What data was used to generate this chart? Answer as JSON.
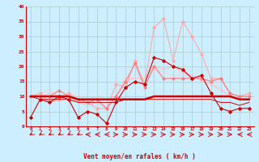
{
  "xlabel": "Vent moyen/en rafales ( km/h )",
  "background_color": "#cceeff",
  "grid_color": "#aacccc",
  "x": [
    0,
    1,
    2,
    3,
    4,
    5,
    6,
    7,
    8,
    9,
    10,
    11,
    12,
    13,
    14,
    15,
    16,
    17,
    18,
    19,
    20,
    21,
    22,
    23
  ],
  "series": [
    {
      "y": [
        3,
        9,
        8,
        10,
        9,
        3,
        5,
        4,
        1,
        8,
        13,
        15,
        14,
        23,
        22,
        20,
        19,
        16,
        17,
        11,
        6,
        5,
        6,
        6
      ],
      "color": "#cc0000",
      "lw": 0.8,
      "marker": "D",
      "ms": 1.8,
      "zorder": 5
    },
    {
      "y": [
        10,
        10,
        10,
        10,
        10,
        9,
        9,
        9,
        9,
        9,
        9,
        9,
        9,
        10,
        10,
        10,
        10,
        10,
        10,
        10,
        10,
        10,
        9,
        9
      ],
      "color": "#cc0000",
      "lw": 1.8,
      "marker": null,
      "ms": 0,
      "zorder": 4
    },
    {
      "y": [
        10,
        9,
        9,
        9,
        9,
        8,
        8,
        8,
        8,
        8,
        9,
        9,
        9,
        9,
        9,
        9,
        9,
        9,
        9,
        9,
        8,
        8,
        7,
        8
      ],
      "color": "#cc0000",
      "lw": 0.7,
      "marker": null,
      "ms": 0,
      "zorder": 3
    },
    {
      "y": [
        10,
        11,
        8,
        9,
        11,
        9,
        8,
        6,
        6,
        14,
        13,
        22,
        14,
        33,
        36,
        22,
        35,
        30,
        24,
        16,
        16,
        11,
        10,
        11
      ],
      "color": "#ffaaaa",
      "lw": 0.8,
      "marker": "D",
      "ms": 1.8,
      "zorder": 2
    },
    {
      "y": [
        10,
        10,
        10,
        12,
        10,
        9,
        8,
        9,
        6,
        10,
        15,
        21,
        13,
        20,
        16,
        16,
        16,
        16,
        16,
        15,
        16,
        11,
        10,
        10
      ],
      "color": "#ff7777",
      "lw": 0.8,
      "marker": "D",
      "ms": 1.5,
      "zorder": 2
    },
    {
      "y": [
        10,
        10,
        11,
        10,
        10,
        8,
        7,
        8,
        6,
        10,
        16,
        16,
        16,
        20,
        19,
        20,
        18,
        17,
        15,
        14,
        12,
        10,
        9,
        9
      ],
      "color": "#ffbbbb",
      "lw": 0.7,
      "marker": null,
      "ms": 0,
      "zorder": 1
    },
    {
      "y": [
        10,
        11,
        12,
        10,
        11,
        10,
        9,
        10,
        9,
        10,
        15,
        16,
        16,
        19,
        18,
        17,
        17,
        17,
        15,
        14,
        13,
        10,
        9,
        9
      ],
      "color": "#ffcccc",
      "lw": 0.7,
      "marker": null,
      "ms": 0,
      "zorder": 1
    }
  ],
  "ylim": [
    0,
    40
  ],
  "yticks": [
    0,
    5,
    10,
    15,
    20,
    25,
    30,
    35,
    40
  ],
  "xticks": [
    0,
    1,
    2,
    3,
    4,
    5,
    6,
    7,
    8,
    9,
    10,
    11,
    12,
    13,
    14,
    15,
    16,
    17,
    18,
    19,
    20,
    21,
    22,
    23
  ],
  "arrow_color": "#cc0000",
  "wind_angles_deg": [
    225,
    225,
    225,
    225,
    225,
    225,
    270,
    270,
    270,
    90,
    90,
    90,
    90,
    90,
    90,
    90,
    90,
    90,
    90,
    90,
    90,
    90,
    270,
    270
  ]
}
